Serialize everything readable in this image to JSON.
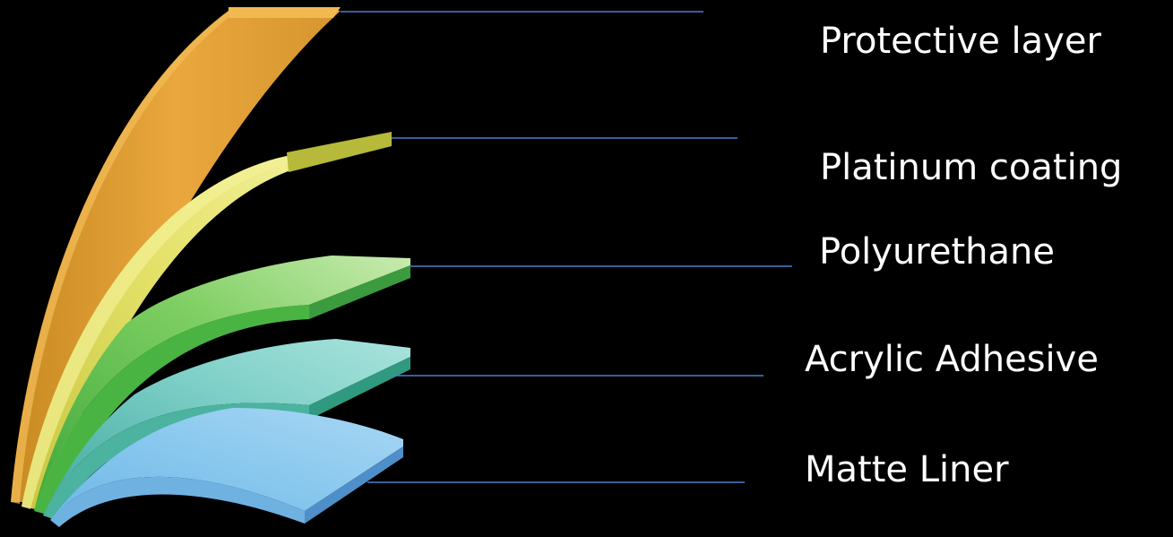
{
  "layers": [
    {
      "label": "Protective layer",
      "color": "#e8a63a"
    },
    {
      "label": "Platinum coating",
      "color": "#dedc5a"
    },
    {
      "label": "Polyurethane",
      "color": "#5cbf4a"
    },
    {
      "label": "Acrylic Adhesive",
      "color": "#7fd0cc"
    },
    {
      "label": "Matte Liner",
      "color": "#86c4ec"
    }
  ],
  "leader_line_color": "#4a7fd0"
}
